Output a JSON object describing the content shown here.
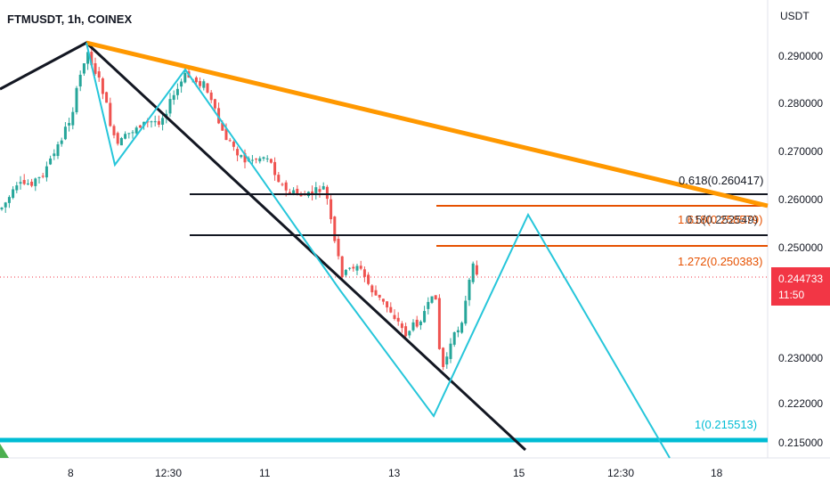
{
  "header": {
    "symbol": "FTMUSDT, 1h, COINEX"
  },
  "price_axis": {
    "currency": "USDT",
    "ticks": [
      "0.290000",
      "0.280000",
      "0.270000",
      "0.260000",
      "0.250000",
      "0.230000",
      "0.222000",
      "0.215000"
    ],
    "current_price": "0.244733",
    "countdown": "11:50",
    "current_price_color": "#f23645"
  },
  "time_axis": {
    "ticks": [
      "8",
      "12:30",
      "11",
      "13",
      "15",
      "12:30",
      "18"
    ]
  },
  "levels": [
    {
      "label": "0.618(0.260417)",
      "color": "#131722"
    },
    {
      "label": "1.618(0.258579)",
      "color": "#e65100"
    },
    {
      "label": "0.5(0.252549)",
      "color": "#131722"
    },
    {
      "label": "1.272(0.250383)",
      "color": "#e65100"
    },
    {
      "label": "1(0.215513)",
      "color": "#00bcd4"
    }
  ],
  "colors": {
    "up_candle": "#26a69a",
    "down_candle": "#ef5350",
    "trendline_orange": "#ff9800",
    "pattern_cyan": "#26c6da",
    "trendline_black": "#131722",
    "fib_orange": "#e65100",
    "support_cyan": "#00bcd4"
  }
}
